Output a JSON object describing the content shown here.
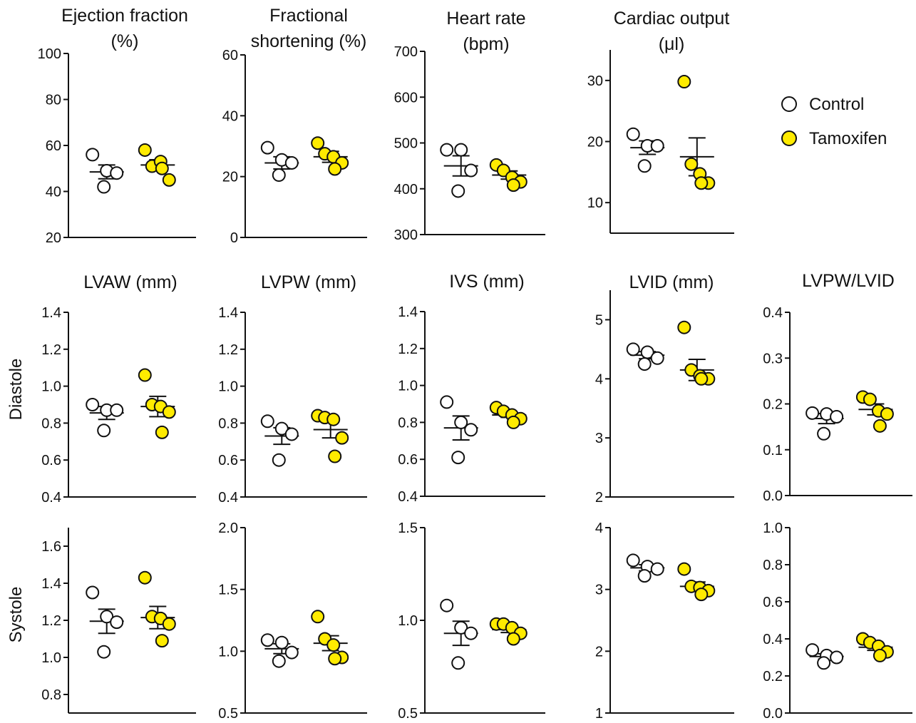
{
  "colors": {
    "control_fill": "#ffffff",
    "tamoxifen_fill": "#ffeb00",
    "stroke": "#111111"
  },
  "legend": [
    {
      "label": "Control",
      "fill": "#ffffff"
    },
    {
      "label": "Tamoxifen",
      "fill": "#ffeb00"
    }
  ],
  "row_labels": {
    "diastole": "Diastole",
    "systole": "Systole"
  },
  "chart_data": [
    {
      "id": "ef",
      "type": "scatter",
      "title": [
        "Ejection fraction",
        "(%)"
      ],
      "ylim": [
        20,
        100
      ],
      "ticks": [
        {
          "v": 20,
          "t": "20"
        },
        {
          "v": 40,
          "t": "40"
        },
        {
          "v": 60,
          "t": "60"
        },
        {
          "v": 80,
          "t": "80"
        },
        {
          "v": 100,
          "t": "100"
        }
      ],
      "series": [
        {
          "name": "Control",
          "values": [
            56,
            49,
            48,
            42
          ],
          "mean": 48.5,
          "sem": 3.0
        },
        {
          "name": "Tamoxifen",
          "values": [
            58,
            51,
            53,
            45,
            50
          ],
          "mean": 51.5,
          "sem": 2.3
        }
      ]
    },
    {
      "id": "fs",
      "type": "scatter",
      "title": [
        "Fractional",
        "shortening (%)"
      ],
      "ylim": [
        0,
        60
      ],
      "ticks": [
        {
          "v": 0,
          "t": "0"
        },
        {
          "v": 20,
          "t": "20"
        },
        {
          "v": 40,
          "t": "40"
        },
        {
          "v": 60,
          "t": "60"
        }
      ],
      "series": [
        {
          "name": "Control",
          "values": [
            29.5,
            25.5,
            24.5,
            20.5
          ],
          "mean": 24.5,
          "sem": 2.0
        },
        {
          "name": "Tamoxifen",
          "values": [
            31,
            27.5,
            26.5,
            24.5,
            22.5
          ],
          "mean": 26.5,
          "sem": 1.8
        }
      ]
    },
    {
      "id": "hr",
      "type": "scatter",
      "title": [
        "Heart rate",
        "(bpm)"
      ],
      "ylim": [
        300,
        700
      ],
      "ticks": [
        {
          "v": 300,
          "t": "300"
        },
        {
          "v": 400,
          "t": "400"
        },
        {
          "v": 500,
          "t": "500"
        },
        {
          "v": 600,
          "t": "600"
        },
        {
          "v": 700,
          "t": "700"
        }
      ],
      "series": [
        {
          "name": "Control",
          "values": [
            485,
            485,
            440,
            395
          ],
          "mean": 450,
          "sem": 22
        },
        {
          "name": "Tamoxifen",
          "values": [
            452,
            440,
            425,
            415,
            408
          ],
          "mean": 430,
          "sem": 9
        }
      ]
    },
    {
      "id": "co",
      "type": "scatter",
      "title": [
        "Cardiac output",
        "(μl)"
      ],
      "ylim": [
        5,
        35
      ],
      "ticks": [
        {
          "v": 10,
          "t": "10"
        },
        {
          "v": 20,
          "t": "20"
        },
        {
          "v": 30,
          "t": "30"
        }
      ],
      "series": [
        {
          "name": "Control",
          "values": [
            21.2,
            19.3,
            19.3,
            16.0
          ],
          "mean": 19.0,
          "sem": 1.1
        },
        {
          "name": "Tamoxifen",
          "values": [
            29.8,
            16.3,
            14.7,
            13.2,
            13.2
          ],
          "mean": 17.5,
          "sem": 3.1
        }
      ]
    },
    {
      "id": "lvaw_d",
      "type": "scatter",
      "title": [
        "LVAW (mm)"
      ],
      "ylim": [
        0.4,
        1.4
      ],
      "ticks": [
        {
          "v": 0.4,
          "t": "0.4"
        },
        {
          "v": 0.6,
          "t": "0.6"
        },
        {
          "v": 0.8,
          "t": "0.8"
        },
        {
          "v": 1.0,
          "t": "1.0"
        },
        {
          "v": 1.2,
          "t": "1.2"
        },
        {
          "v": 1.4,
          "t": "1.4"
        }
      ],
      "series": [
        {
          "name": "Control",
          "values": [
            0.9,
            0.87,
            0.87,
            0.76
          ],
          "mean": 0.855,
          "sem": 0.035
        },
        {
          "name": "Tamoxifen",
          "values": [
            1.06,
            0.9,
            0.89,
            0.86,
            0.75
          ],
          "mean": 0.89,
          "sem": 0.055
        }
      ]
    },
    {
      "id": "lvpw_d",
      "type": "scatter",
      "title": [
        "LVPW (mm)"
      ],
      "ylim": [
        0.4,
        1.4
      ],
      "ticks": [
        {
          "v": 0.4,
          "t": "0.4"
        },
        {
          "v": 0.6,
          "t": "0.6"
        },
        {
          "v": 0.8,
          "t": "0.8"
        },
        {
          "v": 1.0,
          "t": "1.0"
        },
        {
          "v": 1.2,
          "t": "1.2"
        },
        {
          "v": 1.4,
          "t": "1.4"
        }
      ],
      "series": [
        {
          "name": "Control",
          "values": [
            0.81,
            0.77,
            0.74,
            0.6
          ],
          "mean": 0.73,
          "sem": 0.045
        },
        {
          "name": "Tamoxifen",
          "values": [
            0.84,
            0.83,
            0.82,
            0.72,
            0.62
          ],
          "mean": 0.765,
          "sem": 0.045
        }
      ]
    },
    {
      "id": "ivs_d",
      "type": "scatter",
      "title": [
        "IVS (mm)"
      ],
      "ylim": [
        0.4,
        1.4
      ],
      "ticks": [
        {
          "v": 0.4,
          "t": "0.4"
        },
        {
          "v": 0.6,
          "t": "0.6"
        },
        {
          "v": 0.8,
          "t": "0.8"
        },
        {
          "v": 1.0,
          "t": "1.0"
        },
        {
          "v": 1.2,
          "t": "1.2"
        },
        {
          "v": 1.4,
          "t": "1.4"
        }
      ],
      "series": [
        {
          "name": "Control",
          "values": [
            0.91,
            0.8,
            0.76,
            0.61
          ],
          "mean": 0.77,
          "sem": 0.065
        },
        {
          "name": "Tamoxifen",
          "values": [
            0.88,
            0.86,
            0.84,
            0.82,
            0.8
          ],
          "mean": 0.84,
          "sem": 0.013
        }
      ]
    },
    {
      "id": "lvid_d",
      "type": "scatter",
      "title": [
        "LVID (mm)"
      ],
      "ylim": [
        2,
        5.5
      ],
      "ticks": [
        {
          "v": 2,
          "t": "2"
        },
        {
          "v": 3,
          "t": "3"
        },
        {
          "v": 4,
          "t": "4"
        },
        {
          "v": 5,
          "t": "5"
        }
      ],
      "series": [
        {
          "name": "Control",
          "values": [
            4.5,
            4.45,
            4.35,
            4.25
          ],
          "mean": 4.4,
          "sem": 0.06
        },
        {
          "name": "Tamoxifen",
          "values": [
            4.87,
            4.15,
            4.05,
            4.0,
            4.0
          ],
          "mean": 4.15,
          "sem": 0.18
        }
      ]
    },
    {
      "id": "ratio_d",
      "type": "scatter",
      "title": [
        "LVPW/LVID"
      ],
      "ylim": [
        0.0,
        0.4
      ],
      "ticks": [
        {
          "v": 0.0,
          "t": "0.0"
        },
        {
          "v": 0.1,
          "t": "0.1"
        },
        {
          "v": 0.2,
          "t": "0.2"
        },
        {
          "v": 0.3,
          "t": "0.3"
        },
        {
          "v": 0.4,
          "t": "0.4"
        }
      ],
      "series": [
        {
          "name": "Control",
          "values": [
            0.18,
            0.178,
            0.172,
            0.135
          ],
          "mean": 0.168,
          "sem": 0.011
        },
        {
          "name": "Tamoxifen",
          "values": [
            0.215,
            0.21,
            0.185,
            0.178,
            0.152
          ],
          "mean": 0.188,
          "sem": 0.012
        }
      ]
    },
    {
      "id": "lvaw_s",
      "type": "scatter",
      "title": [],
      "ylim": [
        0.7,
        1.7
      ],
      "ticks": [
        {
          "v": 0.8,
          "t": "0.8"
        },
        {
          "v": 1.0,
          "t": "1.0"
        },
        {
          "v": 1.2,
          "t": "1.2"
        },
        {
          "v": 1.4,
          "t": "1.4"
        },
        {
          "v": 1.6,
          "t": "1.6"
        }
      ],
      "series": [
        {
          "name": "Control",
          "values": [
            1.35,
            1.22,
            1.19,
            1.03
          ],
          "mean": 1.195,
          "sem": 0.065
        },
        {
          "name": "Tamoxifen",
          "values": [
            1.43,
            1.22,
            1.21,
            1.18,
            1.09
          ],
          "mean": 1.215,
          "sem": 0.06
        }
      ]
    },
    {
      "id": "lvpw_s",
      "type": "scatter",
      "title": [],
      "ylim": [
        0.5,
        2.0
      ],
      "ticks": [
        {
          "v": 0.5,
          "t": "0.5"
        },
        {
          "v": 1.0,
          "t": "1.0"
        },
        {
          "v": 1.5,
          "t": "1.5"
        },
        {
          "v": 2.0,
          "t": "2.0"
        }
      ],
      "series": [
        {
          "name": "Control",
          "values": [
            1.09,
            1.07,
            0.99,
            0.92
          ],
          "mean": 1.02,
          "sem": 0.04
        },
        {
          "name": "Tamoxifen",
          "values": [
            1.28,
            1.1,
            1.05,
            0.95,
            0.94
          ],
          "mean": 1.065,
          "sem": 0.06
        }
      ]
    },
    {
      "id": "ivs_s",
      "type": "scatter",
      "title": [],
      "ylim": [
        0.5,
        1.5
      ],
      "ticks": [
        {
          "v": 0.5,
          "t": "0.5"
        },
        {
          "v": 1.0,
          "t": "1.0"
        },
        {
          "v": 1.5,
          "t": "1.5"
        }
      ],
      "series": [
        {
          "name": "Control",
          "values": [
            1.08,
            0.96,
            0.93,
            0.77
          ],
          "mean": 0.93,
          "sem": 0.065
        },
        {
          "name": "Tamoxifen",
          "values": [
            0.98,
            0.98,
            0.96,
            0.93,
            0.9
          ],
          "mean": 0.95,
          "sem": 0.016
        }
      ]
    },
    {
      "id": "lvid_s",
      "type": "scatter",
      "title": [],
      "ylim": [
        1,
        4
      ],
      "ticks": [
        {
          "v": 1,
          "t": "1"
        },
        {
          "v": 2,
          "t": "2"
        },
        {
          "v": 3,
          "t": "3"
        },
        {
          "v": 4,
          "t": "4"
        }
      ],
      "series": [
        {
          "name": "Control",
          "values": [
            3.47,
            3.37,
            3.33,
            3.22
          ],
          "mean": 3.35,
          "sem": 0.05
        },
        {
          "name": "Tamoxifen",
          "values": [
            3.33,
            3.05,
            3.03,
            2.98,
            2.92
          ],
          "mean": 3.05,
          "sem": 0.07
        }
      ]
    },
    {
      "id": "ratio_s",
      "type": "scatter",
      "title": [],
      "ylim": [
        0.0,
        1.0
      ],
      "ticks": [
        {
          "v": 0.0,
          "t": "0.0"
        },
        {
          "v": 0.2,
          "t": "0.2"
        },
        {
          "v": 0.4,
          "t": "0.4"
        },
        {
          "v": 0.6,
          "t": "0.6"
        },
        {
          "v": 0.8,
          "t": "0.8"
        },
        {
          "v": 1.0,
          "t": "1.0"
        }
      ],
      "series": [
        {
          "name": "Control",
          "values": [
            0.34,
            0.31,
            0.3,
            0.27
          ],
          "mean": 0.305,
          "sem": 0.014
        },
        {
          "name": "Tamoxifen",
          "values": [
            0.4,
            0.38,
            0.36,
            0.33,
            0.31
          ],
          "mean": 0.355,
          "sem": 0.017
        }
      ]
    }
  ]
}
